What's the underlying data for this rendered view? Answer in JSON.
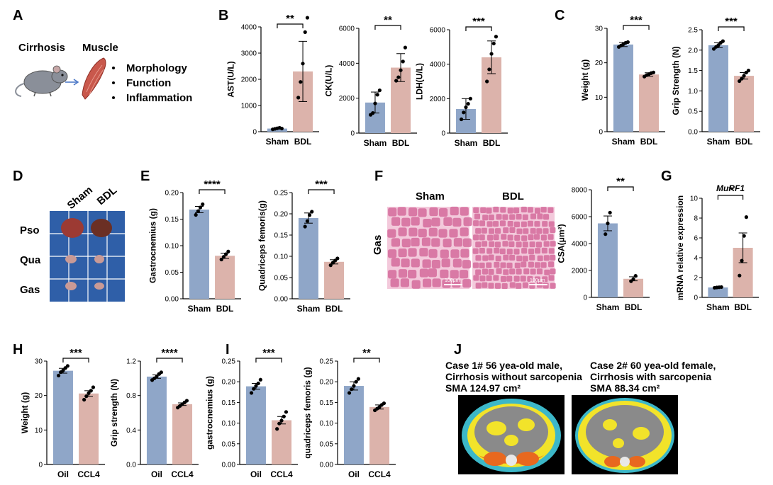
{
  "colors": {
    "sham": "#8fa6c8",
    "bdl": "#dcb3ab",
    "axis": "#000000",
    "muscle": "#c9584c",
    "mouse": "#8a8f99",
    "arrow": "#4472c4",
    "grid": "#ffffff",
    "board": "#2f5fa8",
    "histo_bg": "#f3c9db",
    "histo_fiber": "#d46b9b",
    "ct_body": "#3cb7c8",
    "ct_fat": "#f2e32a",
    "ct_muscle": "#e8681f",
    "ct_organ": "#8a8a8a"
  },
  "panel_labels": [
    "A",
    "B",
    "C",
    "D",
    "E",
    "F",
    "G",
    "H",
    "I",
    "J"
  ],
  "panel_a": {
    "left_label": "Cirrhosis",
    "right_label": "Muscle",
    "bullets": [
      "Morphology",
      "Function",
      "Inflammation"
    ],
    "icons": [
      "mouse-icon",
      "arrow-right-icon",
      "muscle-icon"
    ]
  },
  "panel_d": {
    "columns": [
      "Sham",
      "BDL"
    ],
    "rows": [
      "Pso",
      "Qua",
      "Gas"
    ]
  },
  "panel_f": {
    "image_labels": [
      "Sham",
      "BDL"
    ],
    "row_label": "Gas",
    "scale_bar": "100μm"
  },
  "panel_j": {
    "case1": [
      "Case 1# 56 yea-old male,",
      "Cirrhosis without sarcopenia",
      "SMA 124.97 cm²"
    ],
    "case2": [
      "Case 2# 60 yea-old female,",
      "Cirrhosis with sarcopenia",
      "SMA 88.34 cm²"
    ]
  },
  "chart_data": [
    {
      "id": "B1",
      "type": "bar",
      "categories": [
        "Sham",
        "BDL"
      ],
      "ylabel": "AST(U/L)",
      "ylim": [
        0,
        4000
      ],
      "yticks": [
        0,
        1000,
        2000,
        3000,
        4000
      ],
      "tick_labels": [
        "0",
        "1000",
        "2000",
        "3000",
        "4000"
      ],
      "values": [
        120,
        2300
      ],
      "errors": [
        15,
        1150
      ],
      "significance": "**",
      "points": [
        [
          90,
          110,
          130,
          150,
          120
        ],
        [
          1300,
          1900,
          2600,
          3800,
          4350
        ]
      ]
    },
    {
      "id": "B2",
      "type": "bar",
      "categories": [
        "Sham",
        "BDL"
      ],
      "ylabel": "CK(U/L)",
      "ylim": [
        0,
        6000
      ],
      "yticks": [
        0,
        2000,
        4000,
        6000
      ],
      "tick_labels": [
        "0",
        "2000",
        "4000",
        "6000"
      ],
      "values": [
        1750,
        3750
      ],
      "errors": [
        600,
        800
      ],
      "significance": "**",
      "points": [
        [
          1050,
          1150,
          1700,
          2200,
          2450
        ],
        [
          3000,
          3200,
          3600,
          4100,
          4900
        ]
      ]
    },
    {
      "id": "B3",
      "type": "bar",
      "categories": [
        "Sham",
        "BDL"
      ],
      "ylabel": "LDH(U/L)",
      "ylim": [
        0,
        6000
      ],
      "yticks": [
        0,
        2000,
        4000,
        6000
      ],
      "tick_labels": [
        "0",
        "2000",
        "4000",
        "6000"
      ],
      "values": [
        1400,
        4400
      ],
      "errors": [
        600,
        950
      ],
      "significance": "***",
      "points": [
        [
          800,
          1200,
          1500,
          1700,
          2000
        ],
        [
          3000,
          3700,
          4600,
          5200,
          5600
        ]
      ]
    },
    {
      "id": "C1",
      "type": "bar",
      "categories": [
        "Sham",
        "BDL"
      ],
      "ylabel": "Weight (g)",
      "ylim": [
        0,
        30
      ],
      "yticks": [
        0,
        10,
        20,
        30
      ],
      "tick_labels": [
        "0",
        "10",
        "20",
        "30"
      ],
      "values": [
        25.3,
        16.6
      ],
      "errors": [
        0.6,
        0.5
      ],
      "significance": "***",
      "points": [
        [
          24.6,
          25.0,
          25.4,
          25.8,
          26.0
        ],
        [
          16.0,
          16.4,
          16.7,
          17.0,
          17.2
        ]
      ]
    },
    {
      "id": "C2",
      "type": "bar",
      "categories": [
        "Sham",
        "BDL"
      ],
      "ylabel": "Grip Strength (N)",
      "ylim": [
        0,
        2.5
      ],
      "yticks": [
        0.0,
        0.5,
        1.0,
        1.5,
        2.0,
        2.5
      ],
      "tick_labels": [
        "0.0",
        "0.5",
        "1.0",
        "1.5",
        "2.0",
        "2.5"
      ],
      "values": [
        2.12,
        1.37
      ],
      "errors": [
        0.06,
        0.08
      ],
      "significance": "***",
      "points": [
        [
          2.03,
          2.08,
          2.12,
          2.18,
          2.22
        ],
        [
          1.24,
          1.3,
          1.37,
          1.45,
          1.5
        ]
      ]
    },
    {
      "id": "E1",
      "type": "bar",
      "categories": [
        "Sham",
        "BDL"
      ],
      "ylabel": "Gastrocnemius (g)",
      "ylim": [
        0,
        0.2
      ],
      "yticks": [
        0.0,
        0.05,
        0.1,
        0.15,
        0.2
      ],
      "tick_labels": [
        "0.00",
        "0.05",
        "0.10",
        "0.15",
        "0.20"
      ],
      "values": [
        0.168,
        0.081
      ],
      "errors": [
        0.006,
        0.005
      ],
      "significance": "****",
      "points": [
        [
          0.158,
          0.165,
          0.172,
          0.178
        ],
        [
          0.074,
          0.079,
          0.084,
          0.089
        ]
      ]
    },
    {
      "id": "E2",
      "type": "bar",
      "categories": [
        "Sham",
        "BDL"
      ],
      "ylabel": "Quadriceps femoris(g)",
      "ylim": [
        0,
        0.25
      ],
      "yticks": [
        0.0,
        0.05,
        0.1,
        0.15,
        0.2,
        0.25
      ],
      "tick_labels": [
        "0.00",
        "0.05",
        "0.10",
        "0.15",
        "0.20",
        "0.25"
      ],
      "values": [
        0.19,
        0.087
      ],
      "errors": [
        0.012,
        0.005
      ],
      "significance": "***",
      "points": [
        [
          0.17,
          0.183,
          0.197,
          0.205
        ],
        [
          0.079,
          0.085,
          0.09,
          0.095
        ]
      ]
    },
    {
      "id": "F1",
      "type": "bar",
      "categories": [
        "Sham",
        "BDL"
      ],
      "ylabel": "CSA(μm²)",
      "ylim": [
        0,
        8000
      ],
      "yticks": [
        0,
        2000,
        4000,
        6000,
        8000
      ],
      "tick_labels": [
        "0",
        "2000",
        "4000",
        "6000",
        "8000"
      ],
      "values": [
        5500,
        1380
      ],
      "errors": [
        550,
        150
      ],
      "significance": "**",
      "points": [
        [
          4700,
          5500,
          6300
        ],
        [
          1200,
          1350,
          1600
        ]
      ]
    },
    {
      "id": "G1",
      "type": "bar",
      "categories": [
        "Sham",
        "BDL"
      ],
      "ylabel": "mRNA relative expression",
      "ylim": [
        0,
        10
      ],
      "title": "MuRF1",
      "yticks": [
        0,
        2,
        4,
        6,
        8,
        10
      ],
      "tick_labels": [
        "0",
        "2",
        "4",
        "6",
        "8",
        "10"
      ],
      "values": [
        1.0,
        5.0
      ],
      "errors": [
        0.03,
        1.5
      ],
      "significance": "*",
      "points": [
        [
          0.97,
          1.0,
          1.02,
          1.04
        ],
        [
          2.2,
          3.7,
          6.2,
          8.1
        ]
      ]
    },
    {
      "id": "H1",
      "type": "bar",
      "categories": [
        "Oil",
        "CCL4"
      ],
      "ylabel": "Weight (g)",
      "ylim": [
        0,
        30
      ],
      "yticks": [
        0,
        10,
        20,
        30
      ],
      "tick_labels": [
        "0",
        "10",
        "20",
        "30"
      ],
      "values": [
        27.2,
        20.6
      ],
      "errors": [
        0.7,
        0.8
      ],
      "significance": "***",
      "points": [
        [
          25.8,
          26.8,
          27.3,
          28.0,
          28.6
        ],
        [
          18.8,
          19.8,
          20.7,
          21.4,
          22.4
        ]
      ]
    },
    {
      "id": "H2",
      "type": "bar",
      "categories": [
        "Oil",
        "CCL4"
      ],
      "ylabel": "Grip strength (N)",
      "ylim": [
        0,
        1.2
      ],
      "yticks": [
        0.0,
        0.4,
        0.8,
        1.2
      ],
      "tick_labels": [
        "0.0",
        "0.4",
        "0.8",
        "1.2"
      ],
      "values": [
        1.02,
        0.7
      ],
      "errors": [
        0.02,
        0.015
      ],
      "significance": "****",
      "points": [
        [
          0.98,
          1.0,
          1.02,
          1.05,
          1.07
        ],
        [
          0.66,
          0.68,
          0.7,
          0.72,
          0.74
        ]
      ]
    },
    {
      "id": "I1",
      "type": "bar",
      "categories": [
        "Oil",
        "CCL4"
      ],
      "ylabel": "gastrocnemius (g)",
      "ylim": [
        0,
        0.25
      ],
      "yticks": [
        0.0,
        0.05,
        0.1,
        0.15,
        0.2,
        0.25
      ],
      "tick_labels": [
        "0.00",
        "0.05",
        "0.10",
        "0.15",
        "0.20",
        "0.25"
      ],
      "values": [
        0.189,
        0.107
      ],
      "errors": [
        0.007,
        0.009
      ],
      "significance": "***",
      "points": [
        [
          0.173,
          0.183,
          0.19,
          0.196,
          0.205
        ],
        [
          0.086,
          0.099,
          0.106,
          0.116,
          0.127
        ]
      ]
    },
    {
      "id": "I2",
      "type": "bar",
      "categories": [
        "Oil",
        "CCL4"
      ],
      "ylabel": "quadriceps femoris (g)",
      "ylim": [
        0,
        0.25
      ],
      "yticks": [
        0.0,
        0.05,
        0.1,
        0.15,
        0.2,
        0.25
      ],
      "tick_labels": [
        "0.00",
        "0.05",
        "0.10",
        "0.15",
        "0.20",
        "0.25"
      ],
      "values": [
        0.19,
        0.139
      ],
      "errors": [
        0.01,
        0.005
      ],
      "significance": "**",
      "points": [
        [
          0.173,
          0.182,
          0.19,
          0.2,
          0.207
        ],
        [
          0.131,
          0.135,
          0.139,
          0.144,
          0.148
        ]
      ]
    }
  ]
}
